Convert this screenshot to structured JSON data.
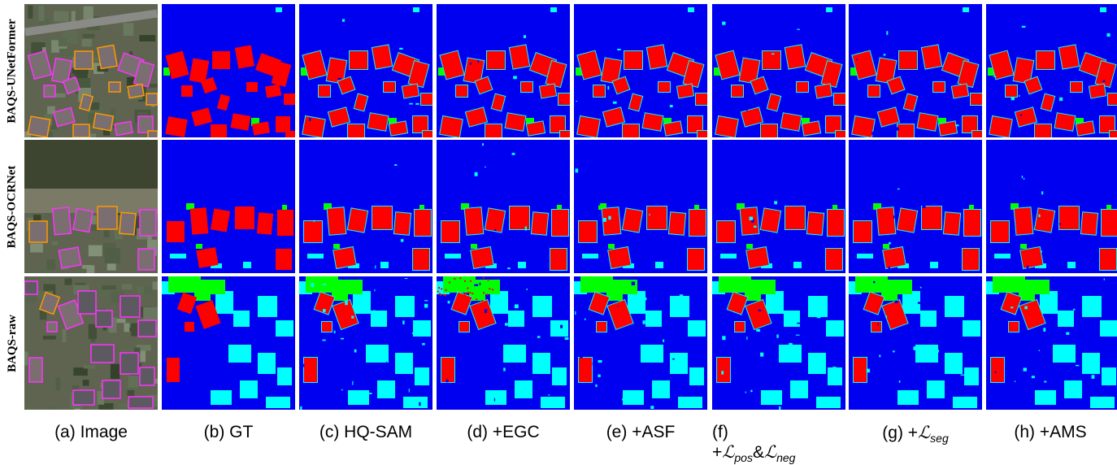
{
  "rows": [
    {
      "label": "BAQS-UNetFormer"
    },
    {
      "label": "BAQS-OCRNet"
    },
    {
      "label": "BAQS-raw"
    }
  ],
  "columns": [
    {
      "caption": "(a) Image"
    },
    {
      "caption": "(b) GT"
    },
    {
      "caption": "(c) HQ-SAM"
    },
    {
      "caption": "(d) +EGC"
    },
    {
      "caption": "(e) +ASF"
    },
    {
      "caption_prefix": "(f)",
      "caption_plus": "+",
      "caption_L1": "ℒ",
      "caption_sub1": "pos",
      "caption_amp": "&",
      "caption_L2": "ℒ",
      "caption_sub2": "neg"
    },
    {
      "caption_prefix": "(g) +",
      "caption_L": "ℒ",
      "caption_sub": "seg"
    },
    {
      "caption": "(h) +AMS"
    }
  ],
  "colors": {
    "background_class": "#0000f0",
    "building_red": "#ff0000",
    "green_class": "#00ff00",
    "cyan_class": "#00ffff",
    "aerial_base": "#5e6450",
    "outline_orange": "#ff9900",
    "outline_magenta": "#ff33ff"
  }
}
